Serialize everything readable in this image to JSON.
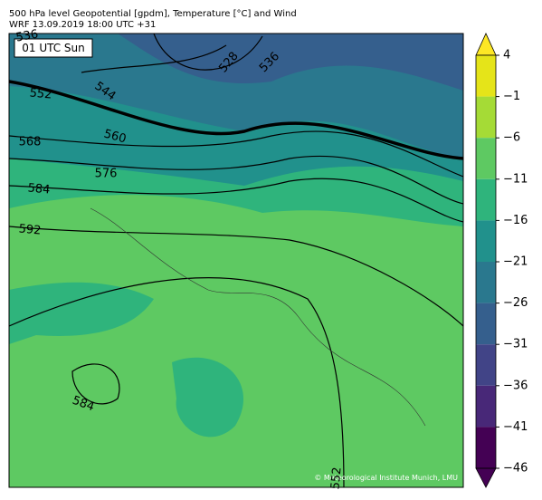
{
  "header": {
    "line1": "500 hPa level Geopotential [gpdm], Temperature [°C] and Wind",
    "line2": "WRF 13.09.2019 18:00 UTC +31"
  },
  "map": {
    "time_label": "01 UTC Sun",
    "contour_labels": [
      "536",
      "552",
      "544",
      "528",
      "536",
      "560",
      "568",
      "576",
      "584",
      "592",
      "584",
      "552"
    ],
    "credit": "© Meteorological Institute Munich, LMU"
  },
  "colorbar": {
    "ticks": [
      4,
      {
        "value": -1,
        "label": "−1"
      },
      {
        "value": -6,
        "label": "−6"
      },
      {
        "value": -11,
        "label": "−11"
      },
      {
        "value": -16,
        "label": "−16"
      },
      {
        "value": -21,
        "label": "−21"
      },
      {
        "value": -26,
        "label": "−26"
      },
      {
        "value": -31,
        "label": "−31"
      },
      {
        "value": -36,
        "label": "−36"
      },
      {
        "value": -41,
        "label": "−41"
      },
      {
        "value": -46,
        "label": "−46"
      }
    ],
    "colors": [
      "#fde725",
      "#e5e419",
      "#a5db36",
      "#5ec962",
      "#2fb47c",
      "#21918c",
      "#2a788e",
      "#355f8d",
      "#414487",
      "#482878",
      "#440154"
    ]
  }
}
